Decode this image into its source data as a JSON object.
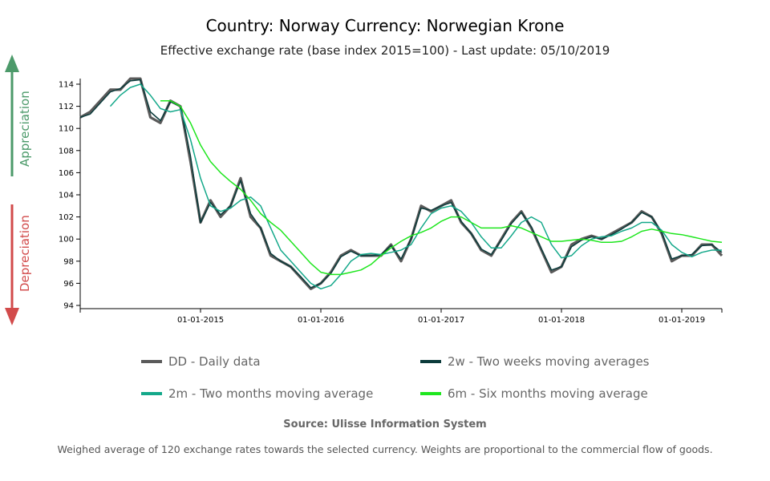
{
  "header": {
    "title": "Country: Norway Currency: Norwegian Krone",
    "subtitle": "Effective exchange rate (base index 2015=100) - Last update: 05/10/2019"
  },
  "side": {
    "up": "Appreciation",
    "down": "Depreciation",
    "up_color": "#4c9a6a",
    "down_color": "#d24b4b"
  },
  "legend": [
    {
      "label": "DD - Daily data",
      "color": "#5a5a5a"
    },
    {
      "label": "2w - Two weeks moving averages",
      "color": "#0b3b3b"
    },
    {
      "label": "2m - Two months moving average",
      "color": "#14a88a"
    },
    {
      "label": "6m - Six months moving average",
      "color": "#1ee61e"
    }
  ],
  "source": "Source: Ulisse Information System",
  "note": "Weighed average of 120 exchange rates towards the selected currency. Weights are proportional to the commercial flow of goods.",
  "chart_data": {
    "type": "line",
    "title": "Country: Norway Currency: Norwegian Krone",
    "subtitle": "Effective exchange rate (base index 2015=100) - Last update: 05/10/2019",
    "xlabel": "",
    "ylabel": "",
    "x_ticks": [
      "01-01-2015",
      "01-01-2016",
      "01-01-2017",
      "01-01-2018",
      "01-01-2019"
    ],
    "y_ticks": [
      94,
      96,
      98,
      100,
      102,
      104,
      106,
      108,
      110,
      112,
      114
    ],
    "xlim": [
      "2014-01",
      "2019-05"
    ],
    "ylim": [
      93.7,
      115.3
    ],
    "grid": false,
    "legend_position": "bottom",
    "start": "2014-01",
    "series": [
      {
        "name": "DD - Daily data",
        "start": "2014-01",
        "values": [
          111,
          111.5,
          112.5,
          113.5,
          113.5,
          114.5,
          114.5,
          111,
          110.5,
          112.5,
          112,
          107,
          101.5,
          103.5,
          102,
          103,
          105.5,
          102,
          101,
          98.5,
          98,
          97.5,
          96.5,
          95.5,
          96,
          97,
          98.5,
          99,
          98.5,
          98.5,
          98.5,
          99.5,
          98,
          100,
          103,
          102.5,
          103,
          103.5,
          101.5,
          100.5,
          99,
          98.5,
          100,
          101.5,
          102.5,
          101,
          99,
          97,
          97.5,
          99.5,
          100,
          100.3,
          100,
          100.5,
          101,
          101.5,
          102.5,
          102,
          100.5,
          98,
          98.5,
          98.5,
          99.5,
          99.5,
          98.5
        ]
      },
      {
        "name": "2w - Two weeks moving averages",
        "start": "2014-01",
        "values": [
          111,
          111.3,
          112.3,
          113.3,
          113.6,
          114.3,
          114.4,
          111.5,
          110.7,
          112.4,
          112,
          107.5,
          101.5,
          103.3,
          102.2,
          103,
          105.3,
          102.3,
          101,
          98.7,
          98,
          97.5,
          96.6,
          95.6,
          96,
          96.9,
          98.4,
          98.9,
          98.5,
          98.5,
          98.6,
          99.4,
          98.2,
          100,
          102.8,
          102.6,
          103,
          103.3,
          101.6,
          100.5,
          99.1,
          98.6,
          99.9,
          101.4,
          102.4,
          101.1,
          99.1,
          97.2,
          97.5,
          99.3,
          99.9,
          100.2,
          100,
          100.4,
          100.9,
          101.5,
          102.4,
          102,
          100.6,
          98.2,
          98.5,
          98.6,
          99.4,
          99.5,
          98.8
        ]
      },
      {
        "name": "2m - Two months moving average",
        "start": "2014-04",
        "values": [
          112,
          113,
          113.7,
          114,
          113,
          111.8,
          111.5,
          111.7,
          109,
          105.5,
          103,
          102.5,
          102.8,
          103.5,
          103.8,
          103,
          101,
          99,
          98,
          97,
          96,
          95.5,
          95.8,
          96.8,
          98,
          98.6,
          98.7,
          98.6,
          98.8,
          99,
          99.5,
          101,
          102.3,
          102.8,
          103,
          102.5,
          101.5,
          100.2,
          99.2,
          99.2,
          100.3,
          101.5,
          102,
          101.5,
          99.5,
          98.3,
          98.5,
          99.4,
          100,
          100.2,
          100.3,
          100.7,
          101,
          101.5,
          101.5,
          100.8,
          99.5,
          98.8,
          98.4,
          98.8,
          99,
          99
        ]
      },
      {
        "name": "6m - Six months moving average",
        "start": "2014-09",
        "values": [
          112.5,
          112.5,
          112,
          110.5,
          108.5,
          107,
          106,
          105.2,
          104.5,
          103.5,
          102.3,
          101.5,
          100.8,
          99.8,
          98.8,
          97.8,
          97,
          96.8,
          96.8,
          97,
          97.2,
          97.7,
          98.5,
          99.2,
          99.8,
          100.3,
          100.6,
          101,
          101.6,
          102,
          102,
          101.5,
          101,
          101,
          101,
          101.2,
          101,
          100.6,
          100.2,
          99.8,
          99.8,
          99.9,
          100,
          99.9,
          99.7,
          99.7,
          99.8,
          100.2,
          100.7,
          100.9,
          100.7,
          100.5,
          100.4,
          100.2,
          100,
          99.8,
          99.7
        ]
      }
    ]
  }
}
